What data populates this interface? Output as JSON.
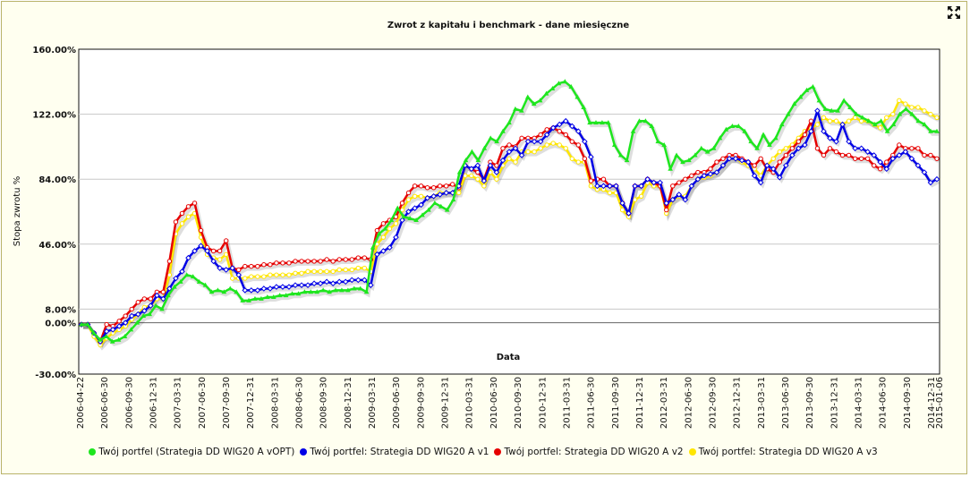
{
  "chart_data": {
    "type": "line",
    "title": "Zwrot z kapitału i benchmark - dane miesięczne",
    "xlabel": "Data",
    "ylabel": "Stopa zwrotu %",
    "ylim": [
      -30,
      160
    ],
    "yticks": [
      "160.00%",
      "122.00%",
      "84.00%",
      "46.00%",
      "8.00%",
      "0.00%",
      "-30.00%"
    ],
    "ytick_values": [
      160,
      122,
      84,
      46,
      8,
      0,
      -30
    ],
    "xticks": [
      "2006-04-22",
      "2006-06-30",
      "2006-09-30",
      "2006-12-31",
      "2007-03-31",
      "2007-06-30",
      "2007-09-30",
      "2007-12-31",
      "2008-03-31",
      "2008-06-30",
      "2008-09-30",
      "2008-12-31",
      "2009-03-31",
      "2009-06-30",
      "2009-09-30",
      "2009-12-31",
      "2010-03-31",
      "2010-06-30",
      "2010-09-30",
      "2010-12-31",
      "2011-03-31",
      "2011-06-30",
      "2011-09-30",
      "2011-12-31",
      "2012-03-31",
      "2012-06-30",
      "2012-09-30",
      "2012-12-31",
      "2013-03-31",
      "2013-06-30",
      "2013-09-30",
      "2013-12-31",
      "2014-03-31",
      "2014-06-30",
      "2014-09-30",
      "2014-12-31",
      "2015-01-06"
    ],
    "grid": true,
    "legend_position": "bottom",
    "series": [
      {
        "name": "Twój portfel (Strategia DD WIG20 A vOPT)",
        "color": "#1ee61e",
        "values": [
          -1,
          -1,
          -6,
          -10,
          -8,
          -11,
          -10,
          -8,
          -4,
          0,
          4,
          5,
          10,
          8,
          16,
          21,
          24,
          28,
          27,
          24,
          22,
          18,
          19,
          18,
          20,
          18,
          13,
          13,
          14,
          14,
          15,
          15,
          16,
          16,
          17,
          17,
          18,
          18,
          18,
          19,
          18,
          19,
          19,
          19,
          20,
          20,
          18,
          44,
          52,
          55,
          60,
          67,
          62,
          61,
          60,
          63,
          66,
          70,
          68,
          66,
          72,
          88,
          95,
          100,
          95,
          102,
          108,
          106,
          112,
          117,
          125,
          124,
          132,
          128,
          130,
          134,
          137,
          140,
          141,
          138,
          132,
          126,
          117,
          117,
          117,
          117,
          104,
          98,
          95,
          112,
          118,
          118,
          115,
          106,
          104,
          90,
          98,
          94,
          95,
          98,
          102,
          100,
          102,
          108,
          113,
          115,
          115,
          112,
          106,
          102,
          110,
          104,
          108,
          116,
          122,
          128,
          132,
          136,
          138,
          130,
          125,
          124,
          124,
          130,
          126,
          122,
          120,
          118,
          116,
          118,
          112,
          116,
          122,
          125,
          122,
          118,
          116,
          112,
          112
        ],
        "dashed": [
          125
        ]
      },
      {
        "name": "Twój portfel: Strategia DD WIG20 A v1",
        "color": "#0000e6",
        "values": [
          -1,
          -1,
          -6,
          -11,
          -5,
          -4,
          -2,
          0,
          4,
          5,
          7,
          10,
          16,
          14,
          20,
          26,
          30,
          38,
          42,
          45,
          42,
          36,
          32,
          31,
          32,
          28,
          19,
          19,
          19,
          20,
          20,
          21,
          21,
          21,
          22,
          22,
          22,
          23,
          23,
          24,
          23,
          24,
          24,
          25,
          25,
          25,
          22,
          40,
          42,
          44,
          50,
          60,
          65,
          67,
          69,
          73,
          74,
          75,
          76,
          76,
          80,
          92,
          90,
          92,
          83,
          92,
          88,
          95,
          100,
          102,
          98,
          106,
          106,
          106,
          110,
          114,
          116,
          118,
          115,
          112,
          106,
          97,
          80,
          80,
          80,
          80,
          70,
          64,
          80,
          80,
          84,
          82,
          82,
          70,
          72,
          75,
          72,
          80,
          84,
          86,
          87,
          88,
          92,
          96,
          96,
          95,
          94,
          86,
          82,
          92,
          90,
          85,
          92,
          98,
          102,
          104,
          112,
          124,
          112,
          108,
          106,
          116,
          106,
          102,
          102,
          100,
          98,
          94,
          90,
          96,
          98,
          100,
          96,
          92,
          88,
          82,
          84
        ]
      },
      {
        "name": "Twój portfel: Strategia DD WIG20 A v2",
        "color": "#e60000",
        "values": [
          -1,
          -1,
          -6,
          -11,
          -1,
          -2,
          1,
          4,
          8,
          12,
          14,
          14,
          18,
          18,
          36,
          59,
          64,
          68,
          70,
          54,
          44,
          42,
          42,
          48,
          32,
          31,
          33,
          33,
          33,
          34,
          34,
          35,
          35,
          35,
          36,
          36,
          36,
          36,
          36,
          37,
          36,
          37,
          37,
          37,
          38,
          38,
          37,
          54,
          58,
          60,
          62,
          70,
          76,
          80,
          80,
          79,
          79,
          80,
          80,
          81,
          79,
          92,
          90,
          88,
          84,
          94,
          92,
          102,
          104,
          103,
          108,
          108,
          108,
          110,
          113,
          114,
          112,
          110,
          106,
          104,
          96,
          83,
          84,
          84,
          80,
          80,
          70,
          64,
          80,
          80,
          84,
          82,
          80,
          66,
          80,
          82,
          84,
          86,
          88,
          88,
          90,
          94,
          96,
          98,
          98,
          96,
          94,
          92,
          96,
          90,
          88,
          94,
          98,
          102,
          106,
          110,
          118,
          102,
          98,
          102,
          100,
          98,
          98,
          96,
          96,
          96,
          92,
          90,
          94,
          98,
          104,
          102,
          102,
          102,
          98,
          98,
          96
        ]
      },
      {
        "name": "Twój portfel: Strategia DD WIG20 A v3",
        "color": "#ffe600",
        "values": [
          -1,
          -1,
          -8,
          -13,
          -9,
          -6,
          -4,
          -2,
          2,
          5,
          9,
          10,
          14,
          14,
          28,
          52,
          58,
          62,
          64,
          50,
          40,
          38,
          37,
          40,
          26,
          26,
          26,
          27,
          27,
          27,
          28,
          28,
          28,
          28,
          29,
          29,
          30,
          30,
          30,
          30,
          30,
          31,
          31,
          31,
          32,
          32,
          30,
          46,
          50,
          55,
          58,
          66,
          72,
          74,
          74,
          73,
          74,
          76,
          76,
          76,
          76,
          86,
          86,
          84,
          80,
          88,
          84,
          92,
          96,
          94,
          100,
          100,
          100,
          102,
          104,
          105,
          104,
          102,
          96,
          94,
          94,
          80,
          78,
          78,
          76,
          76,
          66,
          62,
          72,
          74,
          82,
          80,
          80,
          64,
          72,
          74,
          74,
          80,
          84,
          85,
          86,
          88,
          92,
          96,
          96,
          94,
          92,
          90,
          86,
          92,
          96,
          100,
          102,
          104,
          108,
          112,
          114,
          116,
          120,
          118,
          118,
          116,
          118,
          120,
          118,
          118,
          116,
          114,
          120,
          122,
          130,
          128,
          126,
          126,
          124,
          122,
          120
        ]
      }
    ]
  },
  "legend_label_prefixes": [
    "",
    "",
    "",
    ""
  ]
}
